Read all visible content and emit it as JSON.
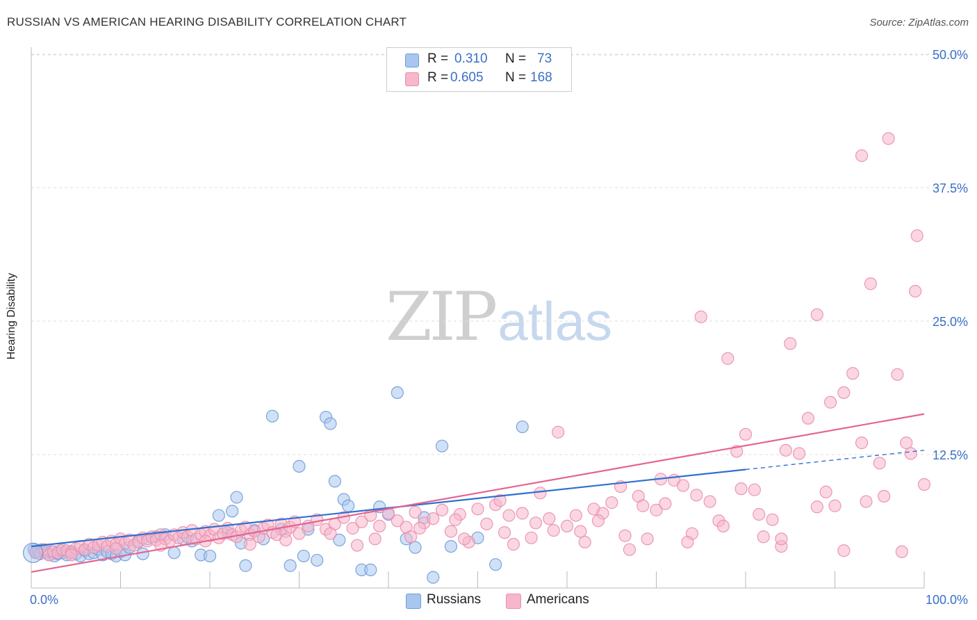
{
  "title": "RUSSIAN VS AMERICAN HEARING DISABILITY CORRELATION CHART",
  "source": "Source: ZipAtlas.com",
  "watermark": {
    "zip": "ZIP",
    "atlas": "atlas"
  },
  "legend": {
    "rows": [
      {
        "r_label": "R =",
        "r_value": "0.310",
        "n_label": "N =",
        "n_value": "73"
      },
      {
        "r_label": "R =",
        "r_value": "0.605",
        "n_label": "N =",
        "n_value": "168"
      }
    ]
  },
  "bottom_legend": [
    "Russians",
    "Americans"
  ],
  "colors": {
    "russians_fill": "#a9c6ef",
    "russians_stroke": "#6f9bd8",
    "russians_line": "#2f6fcf",
    "americans_fill": "#f6b7cb",
    "americans_stroke": "#ea8dac",
    "americans_line": "#e4648f",
    "axis_text": "#3a6fc8",
    "grid": "#dddddd"
  },
  "chart_data": {
    "type": "scatter",
    "title": "RUSSIAN VS AMERICAN HEARING DISABILITY CORRELATION CHART",
    "xlabel": "",
    "ylabel": "Hearing Disability",
    "xlim": [
      0,
      100
    ],
    "ylim": [
      0,
      50
    ],
    "x_tick_labels": [
      "0.0%",
      "100.0%"
    ],
    "y_ticks": [
      12.5,
      25.0,
      37.5,
      50.0
    ],
    "y_tick_labels": [
      "12.5%",
      "25.0%",
      "37.5%",
      "50.0%"
    ],
    "grid": true,
    "legend_position": "top-center",
    "series": [
      {
        "name": "Russians",
        "R": 0.31,
        "N": 73,
        "trend": {
          "x0": 0,
          "y0": 3.9,
          "x1": 80,
          "y1": 11.1,
          "dashed_to_x": 100,
          "dashed_to_y": 12.9
        },
        "points": [
          [
            0.3,
            3.6
          ],
          [
            0.5,
            3.3
          ],
          [
            0.8,
            3.5
          ],
          [
            1.0,
            3.2
          ],
          [
            1.2,
            3.6
          ],
          [
            1.5,
            3.4
          ],
          [
            1.8,
            3.3
          ],
          [
            2.0,
            3.1
          ],
          [
            2.3,
            3.4
          ],
          [
            2.6,
            3.0
          ],
          [
            3.0,
            3.2
          ],
          [
            3.3,
            3.5
          ],
          [
            3.6,
            3.3
          ],
          [
            4.0,
            3.1
          ],
          [
            4.5,
            3.4
          ],
          [
            5.0,
            3.2
          ],
          [
            5.5,
            3.0
          ],
          [
            6.0,
            3.5
          ],
          [
            6.5,
            3.2
          ],
          [
            7.0,
            3.3
          ],
          [
            7.5,
            3.6
          ],
          [
            8.0,
            3.1
          ],
          [
            8.5,
            3.4
          ],
          [
            9.0,
            3.2
          ],
          [
            9.5,
            3.0
          ],
          [
            10.0,
            3.4
          ],
          [
            10.5,
            3.1
          ],
          [
            11.0,
            3.8
          ],
          [
            12.0,
            4.4
          ],
          [
            12.5,
            3.2
          ],
          [
            13.0,
            4.6
          ],
          [
            14.0,
            4.8
          ],
          [
            15.0,
            5.0
          ],
          [
            16.0,
            3.3
          ],
          [
            17.0,
            4.6
          ],
          [
            18.0,
            4.4
          ],
          [
            19.0,
            3.1
          ],
          [
            20.0,
            3.0
          ],
          [
            21.0,
            6.8
          ],
          [
            22.0,
            5.2
          ],
          [
            22.5,
            7.2
          ],
          [
            23.0,
            8.5
          ],
          [
            23.5,
            4.2
          ],
          [
            24.0,
            2.1
          ],
          [
            25.0,
            5.4
          ],
          [
            26.0,
            4.6
          ],
          [
            27.0,
            16.1
          ],
          [
            28.0,
            5.5
          ],
          [
            29.0,
            2.1
          ],
          [
            30.0,
            11.4
          ],
          [
            30.5,
            3.0
          ],
          [
            31.0,
            5.5
          ],
          [
            32.0,
            2.6
          ],
          [
            33.0,
            16.0
          ],
          [
            33.5,
            15.4
          ],
          [
            34.0,
            10.0
          ],
          [
            34.5,
            4.5
          ],
          [
            35.0,
            8.3
          ],
          [
            35.5,
            7.7
          ],
          [
            37.0,
            1.7
          ],
          [
            38.0,
            1.7
          ],
          [
            39.0,
            7.6
          ],
          [
            40.0,
            6.9
          ],
          [
            41.0,
            18.3
          ],
          [
            42.0,
            4.6
          ],
          [
            43.0,
            3.8
          ],
          [
            44.0,
            6.6
          ],
          [
            45.0,
            1.0
          ],
          [
            46.0,
            13.3
          ],
          [
            47.0,
            3.9
          ],
          [
            50.0,
            4.7
          ],
          [
            52.0,
            2.2
          ],
          [
            55.0,
            15.1
          ]
        ]
      },
      {
        "name": "Americans",
        "R": 0.605,
        "N": 168,
        "trend": {
          "x0": 0,
          "y0": 1.5,
          "x1": 100,
          "y1": 16.3
        },
        "points": [
          [
            0.5,
            3.4
          ],
          [
            1,
            3.2
          ],
          [
            1.5,
            3.6
          ],
          [
            2,
            3.1
          ],
          [
            2.5,
            3.4
          ],
          [
            3,
            3.3
          ],
          [
            3.5,
            3.6
          ],
          [
            4,
            3.5
          ],
          [
            4.5,
            3.3
          ],
          [
            5,
            3.7
          ],
          [
            5.5,
            3.9
          ],
          [
            6,
            3.6
          ],
          [
            6.5,
            4.1
          ],
          [
            7,
            3.8
          ],
          [
            7.5,
            4.0
          ],
          [
            8,
            4.3
          ],
          [
            8.5,
            3.9
          ],
          [
            9,
            4.4
          ],
          [
            9.5,
            4.1
          ],
          [
            10,
            4.6
          ],
          [
            10.5,
            4.2
          ],
          [
            11,
            4.5
          ],
          [
            11.5,
            4.0
          ],
          [
            12,
            4.3
          ],
          [
            12.5,
            4.7
          ],
          [
            13,
            4.4
          ],
          [
            13.5,
            4.8
          ],
          [
            14,
            4.5
          ],
          [
            14.5,
            5.0
          ],
          [
            15,
            4.6
          ],
          [
            15.5,
            4.4
          ],
          [
            16,
            5.0
          ],
          [
            16.5,
            4.7
          ],
          [
            17,
            5.2
          ],
          [
            17.5,
            4.8
          ],
          [
            18,
            5.4
          ],
          [
            18.5,
            4.6
          ],
          [
            19,
            5.0
          ],
          [
            19.5,
            5.3
          ],
          [
            20,
            4.9
          ],
          [
            20.5,
            5.5
          ],
          [
            21,
            4.7
          ],
          [
            21.5,
            5.1
          ],
          [
            22,
            5.6
          ],
          [
            22.5,
            5.0
          ],
          [
            23,
            4.8
          ],
          [
            23.5,
            5.4
          ],
          [
            24,
            5.7
          ],
          [
            24.5,
            5.0
          ],
          [
            25,
            5.3
          ],
          [
            25.5,
            4.8
          ],
          [
            26,
            5.6
          ],
          [
            26.5,
            5.9
          ],
          [
            27,
            5.2
          ],
          [
            27.5,
            5.0
          ],
          [
            28,
            6.0
          ],
          [
            28.5,
            5.3
          ],
          [
            29,
            5.7
          ],
          [
            29.5,
            6.2
          ],
          [
            30,
            5.1
          ],
          [
            31,
            5.8
          ],
          [
            32,
            6.4
          ],
          [
            33,
            5.5
          ],
          [
            34,
            6.0
          ],
          [
            35,
            6.6
          ],
          [
            36,
            5.6
          ],
          [
            37,
            6.2
          ],
          [
            38,
            6.8
          ],
          [
            39,
            5.8
          ],
          [
            40,
            7.0
          ],
          [
            41,
            6.3
          ],
          [
            42,
            5.7
          ],
          [
            43,
            7.1
          ],
          [
            44,
            6.1
          ],
          [
            45,
            6.5
          ],
          [
            46,
            7.3
          ],
          [
            47,
            5.3
          ],
          [
            48,
            6.9
          ],
          [
            49,
            4.3
          ],
          [
            50,
            7.4
          ],
          [
            51,
            6.0
          ],
          [
            52,
            7.8
          ],
          [
            53,
            5.2
          ],
          [
            54,
            4.1
          ],
          [
            55,
            7.0
          ],
          [
            56,
            4.7
          ],
          [
            57,
            8.9
          ],
          [
            58,
            6.5
          ],
          [
            59,
            14.6
          ],
          [
            60,
            5.8
          ],
          [
            61,
            6.8
          ],
          [
            62,
            4.3
          ],
          [
            63,
            7.4
          ],
          [
            64,
            7.0
          ],
          [
            65,
            8.0
          ],
          [
            66,
            9.5
          ],
          [
            67,
            3.6
          ],
          [
            68,
            8.6
          ],
          [
            69,
            4.6
          ],
          [
            70,
            7.3
          ],
          [
            71,
            7.9
          ],
          [
            72,
            10.1
          ],
          [
            73,
            9.6
          ],
          [
            74,
            5.1
          ],
          [
            75,
            25.4
          ],
          [
            76,
            8.1
          ],
          [
            77,
            6.3
          ],
          [
            78,
            21.5
          ],
          [
            79,
            12.8
          ],
          [
            80,
            14.4
          ],
          [
            81,
            9.2
          ],
          [
            82,
            4.8
          ],
          [
            83,
            6.4
          ],
          [
            84,
            3.9
          ],
          [
            85,
            22.9
          ],
          [
            86,
            12.6
          ],
          [
            87,
            15.9
          ],
          [
            88,
            25.6
          ],
          [
            89,
            9.0
          ],
          [
            90,
            7.7
          ],
          [
            91,
            18.3
          ],
          [
            92,
            20.1
          ],
          [
            93,
            13.6
          ],
          [
            94,
            28.5
          ],
          [
            95,
            11.7
          ],
          [
            96,
            42.1
          ],
          [
            97,
            20.0
          ],
          [
            98,
            13.6
          ],
          [
            99,
            27.8
          ],
          [
            100,
            9.7
          ],
          [
            36.5,
            4.0
          ],
          [
            42.5,
            4.8
          ],
          [
            47.5,
            6.4
          ],
          [
            52.5,
            8.2
          ],
          [
            56.5,
            6.1
          ],
          [
            61.5,
            5.3
          ],
          [
            66.5,
            4.9
          ],
          [
            70.5,
            10.2
          ],
          [
            74.5,
            8.7
          ],
          [
            79.5,
            9.3
          ],
          [
            84.5,
            12.9
          ],
          [
            89.5,
            17.4
          ],
          [
            93.5,
            8.1
          ],
          [
            97.5,
            3.4
          ],
          [
            88.0,
            7.6
          ],
          [
            91.0,
            3.5
          ],
          [
            95.5,
            8.6
          ],
          [
            98.5,
            12.6
          ],
          [
            99.2,
            33.0
          ],
          [
            93.0,
            40.5
          ],
          [
            84.0,
            4.6
          ],
          [
            81.5,
            6.9
          ],
          [
            77.5,
            5.8
          ],
          [
            73.5,
            4.3
          ],
          [
            68.5,
            7.7
          ],
          [
            63.5,
            6.3
          ],
          [
            58.5,
            5.4
          ],
          [
            53.5,
            6.8
          ],
          [
            48.5,
            4.6
          ],
          [
            43.5,
            5.6
          ],
          [
            38.5,
            4.6
          ],
          [
            33.5,
            5.1
          ],
          [
            28.5,
            4.5
          ],
          [
            24.5,
            4.1
          ],
          [
            19.5,
            4.4
          ],
          [
            14.5,
            4.0
          ],
          [
            9.5,
            3.7
          ],
          [
            4.5,
            3.1
          ]
        ]
      }
    ]
  }
}
